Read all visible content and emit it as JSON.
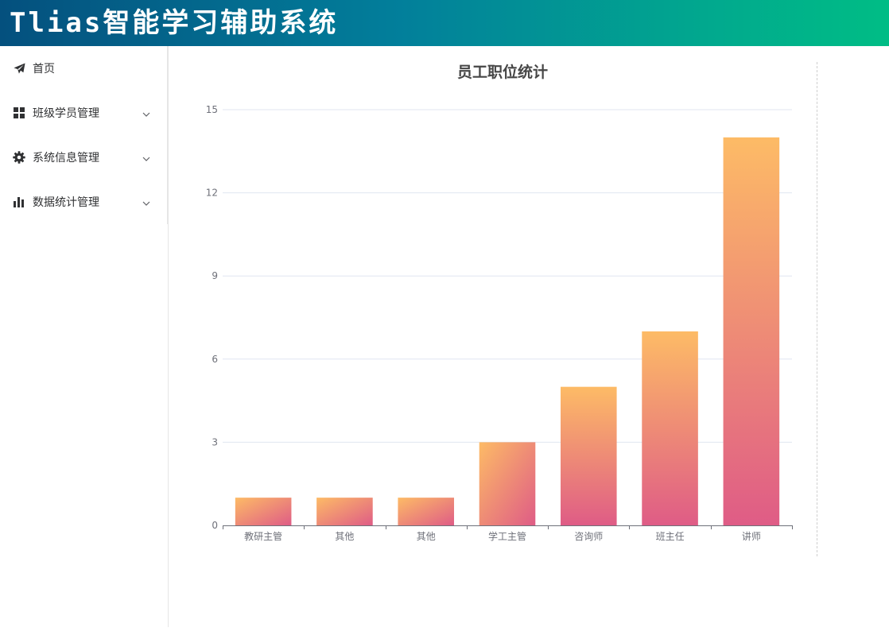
{
  "header": {
    "title": "Tlias智能学习辅助系统"
  },
  "sidebar": {
    "items": [
      {
        "label": "首页",
        "icon": "paper-plane-icon",
        "expandable": false
      },
      {
        "label": "班级学员管理",
        "icon": "grid-icon",
        "expandable": true
      },
      {
        "label": "系统信息管理",
        "icon": "gear-icon",
        "expandable": true
      },
      {
        "label": "数据统计管理",
        "icon": "bar-chart-icon",
        "expandable": true
      }
    ]
  },
  "colors": {
    "header_gradient_start": "#04507e",
    "header_gradient_end": "#00bd85",
    "bar_gradient_top": "#fdbb66",
    "bar_gradient_bottom": "#df5c86"
  },
  "chart_data": {
    "type": "bar",
    "title": "员工职位统计",
    "categories": [
      "教研主管",
      "其他",
      "其他",
      "学工主管",
      "咨询师",
      "班主任",
      "讲师"
    ],
    "values": [
      1,
      1,
      1,
      3,
      5,
      7,
      14
    ],
    "xlabel": "",
    "ylabel": "",
    "ylim": [
      0,
      15
    ],
    "yticks": [
      0,
      3,
      6,
      9,
      12,
      15
    ],
    "grid": true,
    "legend": "none"
  }
}
